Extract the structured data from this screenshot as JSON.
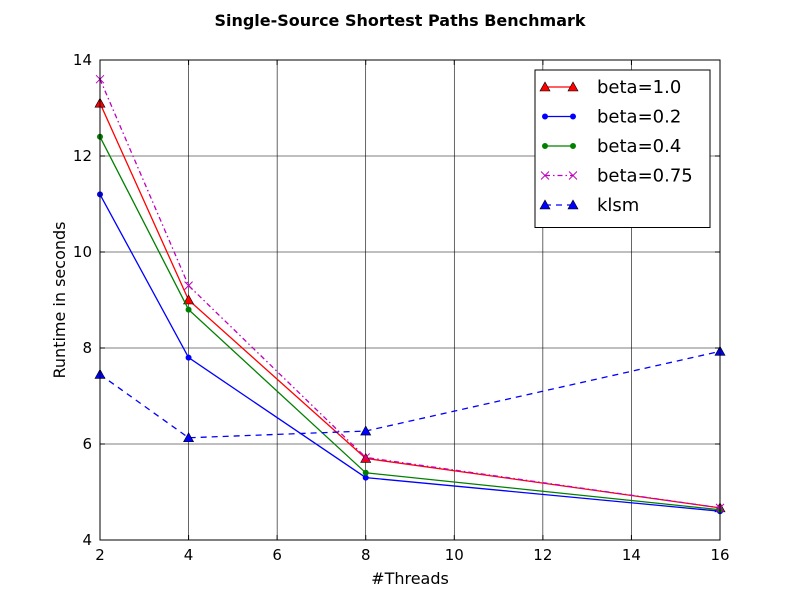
{
  "chart_data": {
    "type": "line",
    "title": "Single-Source Shortest Paths Benchmark",
    "xlabel": "#Threads",
    "ylabel": "Runtime in seconds",
    "xlim": [
      2,
      16
    ],
    "ylim": [
      4,
      14
    ],
    "x_ticks": [
      2,
      4,
      6,
      8,
      10,
      12,
      14,
      16
    ],
    "y_ticks": [
      4,
      6,
      8,
      10,
      12,
      14
    ],
    "grid": true,
    "legend_position": "top-right",
    "x": [
      2,
      4,
      8,
      16
    ],
    "series": [
      {
        "name": "beta=1.0",
        "values": [
          13.1,
          9.0,
          5.7,
          4.67
        ],
        "color": "#ff0000",
        "linestyle": "solid",
        "marker": "triangle"
      },
      {
        "name": "beta=0.2",
        "values": [
          11.2,
          7.8,
          5.3,
          4.6
        ],
        "color": "#0000ff",
        "linestyle": "solid",
        "marker": "dot"
      },
      {
        "name": "beta=0.4",
        "values": [
          12.4,
          8.8,
          5.4,
          4.63
        ],
        "color": "#008000",
        "linestyle": "solid",
        "marker": "dot"
      },
      {
        "name": "beta=0.75",
        "values": [
          13.6,
          9.3,
          5.72,
          4.67
        ],
        "color": "#bf00bf",
        "linestyle": "dashdot",
        "marker": "x"
      },
      {
        "name": "klsm",
        "values": [
          7.45,
          6.13,
          6.27,
          7.93
        ],
        "color": "#0000ff",
        "linestyle": "dashed",
        "marker": "triangle"
      }
    ]
  }
}
